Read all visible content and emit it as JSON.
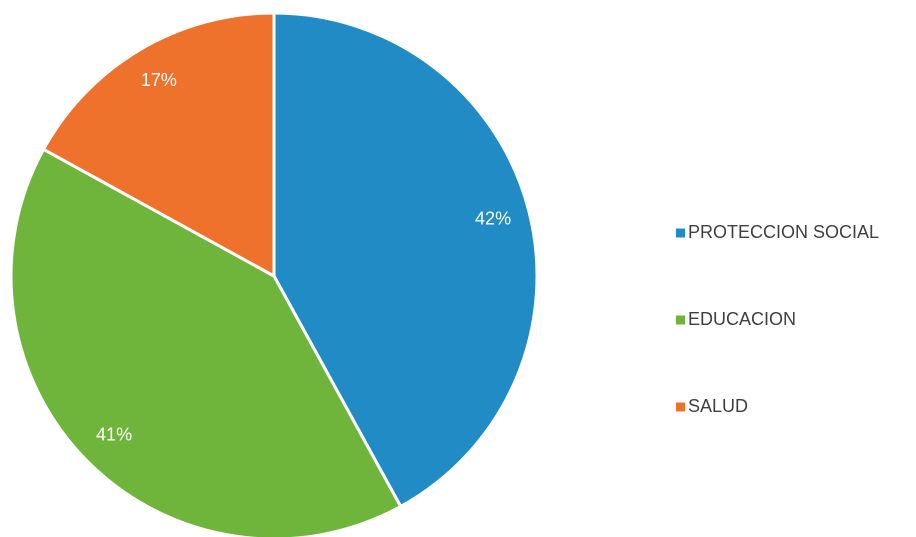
{
  "chart_data": {
    "type": "pie",
    "categories": [
      "PROTECCION SOCIAL",
      "EDUCACION",
      "SALUD"
    ],
    "values": [
      42,
      41,
      17
    ],
    "value_labels": [
      "42%",
      "41%",
      "17%"
    ],
    "colors": [
      "#218bc6",
      "#6fb53c",
      "#ee722b"
    ],
    "legend": "right"
  }
}
